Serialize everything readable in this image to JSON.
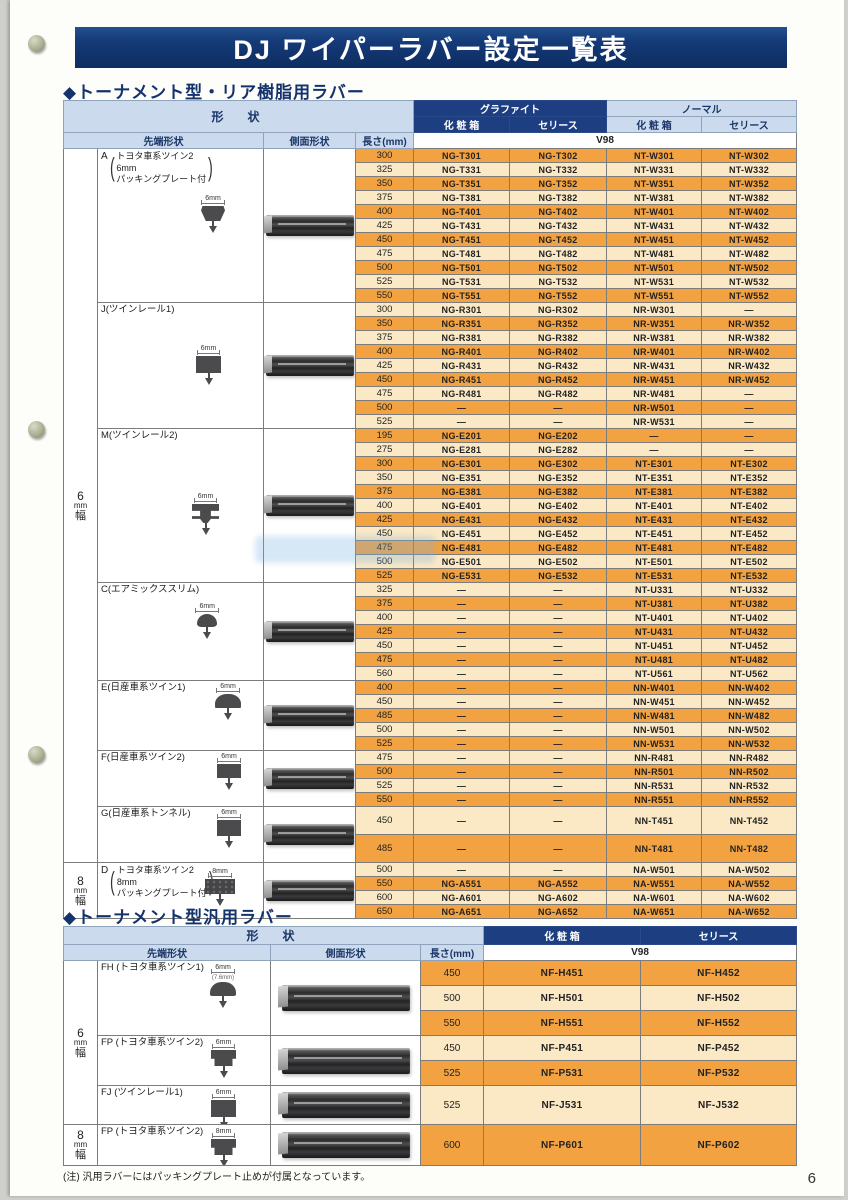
{
  "page": {
    "title": "DJ ワイパーラバー設定一覧表",
    "note": "(注) 汎用ラバーにはパッキングプレート止めが付属となっています。",
    "page_number": "6"
  },
  "colors": {
    "header_navy": "#1d3f82",
    "header_light_blue": "#cbdaec",
    "row_orange": "#f2a240",
    "row_cream": "#fbe9c5",
    "title_navy": "#143a77"
  },
  "table1": {
    "heading": "◆トーナメント型・リア樹脂用ラバー",
    "headers": {
      "shape": "形　状",
      "graphite": "グラファイト",
      "normal": "ノーマル",
      "box": "化 粧 箱",
      "series": "セリース",
      "tip": "先端形状",
      "side": "側面形状",
      "length": "長さ(mm)",
      "version": "V98"
    },
    "width_groups": [
      {
        "chars": [
          "6",
          "mm",
          "幅"
        ]
      },
      {
        "chars": [
          "8",
          "mm",
          "幅"
        ]
      }
    ],
    "sections": [
      {
        "code": "A",
        "group": 0,
        "letter": "A",
        "lines": [
          "トヨタ車系ツイン2",
          "6mm",
          "パッキングプレート付"
        ],
        "dim": "6mm",
        "rows": [
          [
            "300",
            "NG-T301",
            "NG-T302",
            "NT-W301",
            "NT-W302"
          ],
          [
            "325",
            "NG-T331",
            "NG-T332",
            "NT-W331",
            "NT-W332"
          ],
          [
            "350",
            "NG-T351",
            "NG-T352",
            "NT-W351",
            "NT-W352"
          ],
          [
            "375",
            "NG-T381",
            "NG-T382",
            "NT-W381",
            "NT-W382"
          ],
          [
            "400",
            "NG-T401",
            "NG-T402",
            "NT-W401",
            "NT-W402"
          ],
          [
            "425",
            "NG-T431",
            "NG-T432",
            "NT-W431",
            "NT-W432"
          ],
          [
            "450",
            "NG-T451",
            "NG-T452",
            "NT-W451",
            "NT-W452"
          ],
          [
            "475",
            "NG-T481",
            "NG-T482",
            "NT-W481",
            "NT-W482"
          ],
          [
            "500",
            "NG-T501",
            "NG-T502",
            "NT-W501",
            "NT-W502"
          ],
          [
            "525",
            "NG-T531",
            "NG-T532",
            "NT-W531",
            "NT-W532"
          ],
          [
            "550",
            "NG-T551",
            "NG-T552",
            "NT-W551",
            "NT-W552"
          ]
        ]
      },
      {
        "code": "J",
        "group": 0,
        "label": "J(ツインレール1)",
        "dim": "6mm",
        "rows": [
          [
            "300",
            "NG-R301",
            "NG-R302",
            "NR-W301",
            "—"
          ],
          [
            "350",
            "NG-R351",
            "NG-R352",
            "NR-W351",
            "NR-W352"
          ],
          [
            "375",
            "NG-R381",
            "NG-R382",
            "NR-W381",
            "NR-W382"
          ],
          [
            "400",
            "NG-R401",
            "NG-R402",
            "NR-W401",
            "NR-W402"
          ],
          [
            "425",
            "NG-R431",
            "NG-R432",
            "NR-W431",
            "NR-W432"
          ],
          [
            "450",
            "NG-R451",
            "NG-R452",
            "NR-W451",
            "NR-W452"
          ],
          [
            "475",
            "NG-R481",
            "NG-R482",
            "NR-W481",
            "—"
          ],
          [
            "500",
            "—",
            "—",
            "NR-W501",
            "—"
          ],
          [
            "525",
            "—",
            "—",
            "NR-W531",
            "—"
          ]
        ]
      },
      {
        "code": "M",
        "group": 0,
        "label": "M(ツインレール2)",
        "dim": "6mm",
        "rows": [
          [
            "195",
            "NG-E201",
            "NG-E202",
            "—",
            "—"
          ],
          [
            "275",
            "NG-E281",
            "NG-E282",
            "—",
            "—"
          ],
          [
            "300",
            "NG-E301",
            "NG-E302",
            "NT-E301",
            "NT-E302"
          ],
          [
            "350",
            "NG-E351",
            "NG-E352",
            "NT-E351",
            "NT-E352"
          ],
          [
            "375",
            "NG-E381",
            "NG-E382",
            "NT-E381",
            "NT-E382"
          ],
          [
            "400",
            "NG-E401",
            "NG-E402",
            "NT-E401",
            "NT-E402"
          ],
          [
            "425",
            "NG-E431",
            "NG-E432",
            "NT-E431",
            "NT-E432"
          ],
          [
            "450",
            "NG-E451",
            "NG-E452",
            "NT-E451",
            "NT-E452"
          ],
          [
            "475",
            "NG-E481",
            "NG-E482",
            "NT-E481",
            "NT-E482"
          ],
          [
            "500",
            "NG-E501",
            "NG-E502",
            "NT-E501",
            "NT-E502"
          ],
          [
            "525",
            "NG-E531",
            "NG-E532",
            "NT-E531",
            "NT-E532"
          ]
        ]
      },
      {
        "code": "C",
        "group": 0,
        "label": "C(エアミックススリム)",
        "dim": "6mm",
        "rows": [
          [
            "325",
            "—",
            "—",
            "NT-U331",
            "NT-U332"
          ],
          [
            "375",
            "—",
            "—",
            "NT-U381",
            "NT-U382"
          ],
          [
            "400",
            "—",
            "—",
            "NT-U401",
            "NT-U402"
          ],
          [
            "425",
            "—",
            "—",
            "NT-U431",
            "NT-U432"
          ],
          [
            "450",
            "—",
            "—",
            "NT-U451",
            "NT-U452"
          ],
          [
            "475",
            "—",
            "—",
            "NT-U481",
            "NT-U482"
          ],
          [
            "560",
            "—",
            "—",
            "NT-U561",
            "NT-U562"
          ]
        ]
      },
      {
        "code": "E",
        "group": 0,
        "label": "E(日産車系ツイン1)",
        "dim": "6mm",
        "rows": [
          [
            "400",
            "—",
            "—",
            "NN-W401",
            "NN-W402"
          ],
          [
            "450",
            "—",
            "—",
            "NN-W451",
            "NN-W452"
          ],
          [
            "485",
            "—",
            "—",
            "NN-W481",
            "NN-W482"
          ],
          [
            "500",
            "—",
            "—",
            "NN-W501",
            "NN-W502"
          ],
          [
            "525",
            "—",
            "—",
            "NN-W531",
            "NN-W532"
          ]
        ]
      },
      {
        "code": "F",
        "group": 0,
        "label": "F(日産車系ツイン2)",
        "dim": "6mm",
        "rows": [
          [
            "475",
            "—",
            "—",
            "NN-R481",
            "NN-R482"
          ],
          [
            "500",
            "—",
            "—",
            "NN-R501",
            "NN-R502"
          ],
          [
            "525",
            "—",
            "—",
            "NN-R531",
            "NN-R532"
          ],
          [
            "550",
            "—",
            "—",
            "NN-R551",
            "NN-R552"
          ]
        ]
      },
      {
        "code": "G",
        "group": 0,
        "label": "G(日産車系トンネル)",
        "dim": "6mm",
        "tall": true,
        "rows": [
          [
            "450",
            "—",
            "—",
            "NN-T451",
            "NN-T452"
          ],
          [
            "485",
            "—",
            "—",
            "NN-T481",
            "NN-T482"
          ]
        ]
      },
      {
        "code": "D",
        "group": 1,
        "letter": "D",
        "lines": [
          "トヨタ車系ツイン2",
          "8mm",
          "パッキングプレート付"
        ],
        "dim": "8mm",
        "rows": [
          [
            "500",
            "—",
            "—",
            "NA-W501",
            "NA-W502"
          ],
          [
            "550",
            "NG-A551",
            "NG-A552",
            "NA-W551",
            "NA-W552"
          ],
          [
            "600",
            "NG-A601",
            "NG-A602",
            "NA-W601",
            "NA-W602"
          ],
          [
            "650",
            "NG-A651",
            "NG-A652",
            "NA-W651",
            "NA-W652"
          ]
        ]
      }
    ]
  },
  "table2": {
    "heading": "◆トーナメント型汎用ラバー",
    "headers": {
      "shape": "形　状",
      "box": "化 粧 箱",
      "series": "セリース",
      "tip": "先端形状",
      "side": "側面形状",
      "length": "長さ(mm)",
      "version": "V98"
    },
    "width_groups": [
      {
        "chars": [
          "6",
          "mm",
          "幅"
        ]
      },
      {
        "chars": [
          "8",
          "mm",
          "幅"
        ]
      }
    ],
    "sections": [
      {
        "code": "FH",
        "group": 0,
        "label": "FH (トヨタ車系ツイン1)",
        "dim": "6mm",
        "sub_dim": "(7.6mm)",
        "rows": [
          [
            "450",
            "NF-H451",
            "NF-H452"
          ],
          [
            "500",
            "NF-H501",
            "NF-H502"
          ],
          [
            "550",
            "NF-H551",
            "NF-H552"
          ]
        ]
      },
      {
        "code": "FP",
        "group": 0,
        "label": "FP (トヨタ車系ツイン2)",
        "dim": "6mm",
        "rows": [
          [
            "450",
            "NF-P451",
            "NF-P452"
          ],
          [
            "525",
            "NF-P531",
            "NF-P532"
          ]
        ]
      },
      {
        "code": "FJ",
        "group": 0,
        "label": "FJ (ツインレール1)",
        "dim": "6mm",
        "row_class": "row-xtall",
        "rows": [
          [
            "525",
            "NF-J531",
            "NF-J532"
          ]
        ]
      },
      {
        "code": "FP8",
        "group": 1,
        "label": "FP (トヨタ車系ツイン2)",
        "dim": "8mm",
        "row_class": "row-xxtall",
        "rows": [
          [
            "600",
            "NF-P601",
            "NF-P602"
          ]
        ]
      }
    ]
  }
}
